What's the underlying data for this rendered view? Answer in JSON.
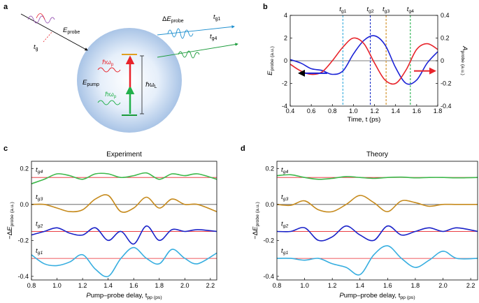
{
  "panel_labels": {
    "a": "a",
    "b": "b",
    "c": "c",
    "d": "d"
  },
  "diagram_a": {
    "e_probe": "E_probe",
    "e_pump": "E_pump",
    "delta_e_probe": "ΔE_probe",
    "tg": "t_g",
    "tg1": "t_g1",
    "tg4": "t_g4",
    "hbar_omega_p": "ℏω_p",
    "hbar_omega_L": "ℏω_L"
  },
  "chart_data": [
    {
      "id": "b",
      "type": "line",
      "title": "",
      "xlabel": "Time, t (ps)",
      "ylabel_left": "E_probe (a.u.)",
      "ylabel_right": "A_probe (a.u.)",
      "xlim": [
        0.4,
        1.8
      ],
      "ylim_left": [
        -4,
        4
      ],
      "ylim_right": [
        -0.4,
        0.4
      ],
      "xticks": [
        "0.4",
        "0.6",
        "0.8",
        "1.0",
        "1.2",
        "1.4",
        "1.6",
        "1.8"
      ],
      "yticks_left": [
        "4",
        "2",
        "0",
        "-2",
        "-4"
      ],
      "yticks_right": [
        "0.4",
        "0.2",
        "0",
        "-0.2",
        "-0.4"
      ],
      "vlines": [
        {
          "label": "t_g1",
          "x": 0.9,
          "color": "#33aadd"
        },
        {
          "label": "t_g2",
          "x": 1.16,
          "color": "#1a2fc7"
        },
        {
          "label": "t_g3",
          "x": 1.31,
          "color": "#d08a1c"
        },
        {
          "label": "t_g4",
          "x": 1.54,
          "color": "#22b04b"
        }
      ],
      "series": [
        {
          "name": "E_probe",
          "axis": "left",
          "color": "#1a22d6",
          "x": [
            0.4,
            0.5,
            0.6,
            0.7,
            0.8,
            0.9,
            1.0,
            1.1,
            1.2,
            1.3,
            1.4,
            1.5,
            1.6,
            1.7,
            1.8
          ],
          "y": [
            0.1,
            -0.2,
            -0.7,
            -0.85,
            -1.2,
            -0.9,
            0.6,
            1.8,
            2.2,
            1.4,
            -0.6,
            -2.0,
            -1.7,
            -0.2,
            0.8
          ]
        },
        {
          "name": "A_probe",
          "axis": "right",
          "color": "#e8232a",
          "x": [
            0.4,
            0.5,
            0.6,
            0.7,
            0.8,
            0.9,
            1.0,
            1.1,
            1.2,
            1.3,
            1.4,
            1.5,
            1.6,
            1.7,
            1.8
          ],
          "y": [
            -0.03,
            -0.09,
            -0.12,
            -0.1,
            0.0,
            0.12,
            0.2,
            0.15,
            -0.02,
            -0.17,
            -0.2,
            -0.08,
            0.1,
            0.15,
            0.1
          ]
        }
      ]
    },
    {
      "id": "c",
      "type": "line",
      "title": "Experiment",
      "xlabel": "Pump–probe delay, t_pp (ps)",
      "ylabel": "−ΔE_probe (a.u.)",
      "xlim": [
        0.8,
        2.25
      ],
      "ylim": [
        -0.42,
        0.24
      ],
      "xticks": [
        "0.8",
        "1.0",
        "1.2",
        "1.4",
        "1.6",
        "1.8",
        "2.0",
        "2.2"
      ],
      "yticks": [
        "0.2",
        "0.0",
        "-0.2",
        "-0.4"
      ],
      "baselines": [
        0.15,
        0.0,
        -0.15,
        -0.3
      ],
      "series": [
        {
          "name": "t_g4",
          "color": "#3cb84a",
          "x": [
            0.8,
            0.9,
            1.0,
            1.1,
            1.2,
            1.3,
            1.4,
            1.5,
            1.6,
            1.7,
            1.8,
            1.9,
            2.0,
            2.1,
            2.25
          ],
          "y": [
            0.115,
            0.14,
            0.17,
            0.16,
            0.14,
            0.17,
            0.17,
            0.15,
            0.16,
            0.175,
            0.14,
            0.17,
            0.16,
            0.17,
            0.14
          ]
        },
        {
          "name": "t_g3",
          "color": "#c68a1c",
          "x": [
            0.8,
            0.9,
            1.0,
            1.1,
            1.2,
            1.3,
            1.4,
            1.5,
            1.6,
            1.7,
            1.8,
            1.9,
            2.0,
            2.1,
            2.25
          ],
          "y": [
            0.0,
            0.0,
            -0.02,
            -0.04,
            -0.03,
            0.03,
            0.05,
            -0.04,
            -0.02,
            0.04,
            -0.02,
            0.03,
            0.0,
            0.0,
            -0.04
          ]
        },
        {
          "name": "t_g2",
          "color": "#1a22c8",
          "x": [
            0.8,
            0.9,
            1.0,
            1.1,
            1.2,
            1.3,
            1.4,
            1.5,
            1.6,
            1.7,
            1.8,
            1.9,
            2.0,
            2.1,
            2.25
          ],
          "y": [
            -0.17,
            -0.15,
            -0.13,
            -0.16,
            -0.17,
            -0.13,
            -0.2,
            -0.15,
            -0.22,
            -0.12,
            -0.2,
            -0.14,
            -0.15,
            -0.14,
            -0.15
          ]
        },
        {
          "name": "t_g1",
          "color": "#36aee0",
          "x": [
            0.8,
            0.9,
            1.0,
            1.1,
            1.2,
            1.3,
            1.4,
            1.5,
            1.6,
            1.7,
            1.8,
            1.9,
            2.0,
            2.1,
            2.25
          ],
          "y": [
            -0.28,
            -0.33,
            -0.34,
            -0.32,
            -0.28,
            -0.36,
            -0.4,
            -0.3,
            -0.24,
            -0.3,
            -0.33,
            -0.25,
            -0.3,
            -0.33,
            -0.27
          ]
        }
      ],
      "series_labels": [
        "t_g4",
        "t_g3",
        "t_g2",
        "t_g1"
      ]
    },
    {
      "id": "d",
      "type": "line",
      "title": "Theory",
      "xlabel": "Pump–probe delay, t_pp (ps)",
      "ylabel": "−ΔE_probe (a.u.)",
      "xlim": [
        0.8,
        2.25
      ],
      "ylim": [
        -0.42,
        0.24
      ],
      "xticks": [
        "0.8",
        "1.0",
        "1.2",
        "1.4",
        "1.6",
        "1.8",
        "2.0",
        "2.2"
      ],
      "yticks": [
        "0.2",
        "0.0",
        "-0.2",
        "-0.4"
      ],
      "baselines": [
        0.15,
        0.0,
        -0.15,
        -0.3
      ],
      "series": [
        {
          "name": "t_g4",
          "color": "#3cb84a",
          "x": [
            0.8,
            0.9,
            1.0,
            1.1,
            1.2,
            1.3,
            1.4,
            1.5,
            1.6,
            1.7,
            1.8,
            1.9,
            2.0,
            2.1,
            2.25
          ],
          "y": [
            0.16,
            0.165,
            0.15,
            0.14,
            0.145,
            0.155,
            0.15,
            0.145,
            0.15,
            0.152,
            0.148,
            0.15,
            0.15,
            0.148,
            0.15
          ]
        },
        {
          "name": "t_g3",
          "color": "#c68a1c",
          "x": [
            0.8,
            0.9,
            1.0,
            1.1,
            1.2,
            1.3,
            1.4,
            1.5,
            1.6,
            1.7,
            1.8,
            1.9,
            2.0,
            2.1,
            2.25
          ],
          "y": [
            0.0,
            -0.005,
            0.02,
            -0.03,
            -0.04,
            0.0,
            0.05,
            0.01,
            -0.04,
            0.02,
            0.01,
            -0.01,
            0.0,
            0.0,
            0.0
          ]
        },
        {
          "name": "t_g2",
          "color": "#1a22c8",
          "x": [
            0.8,
            0.9,
            1.0,
            1.1,
            1.2,
            1.3,
            1.4,
            1.5,
            1.6,
            1.7,
            1.8,
            1.9,
            2.0,
            2.1,
            2.25
          ],
          "y": [
            -0.15,
            -0.15,
            -0.13,
            -0.2,
            -0.18,
            -0.12,
            -0.17,
            -0.2,
            -0.12,
            -0.17,
            -0.15,
            -0.13,
            -0.15,
            -0.13,
            -0.15
          ]
        },
        {
          "name": "t_g1",
          "color": "#36aee0",
          "x": [
            0.8,
            0.9,
            1.0,
            1.1,
            1.2,
            1.3,
            1.4,
            1.5,
            1.6,
            1.7,
            1.8,
            1.9,
            2.0,
            2.1,
            2.25
          ],
          "y": [
            -0.3,
            -0.3,
            -0.31,
            -0.3,
            -0.33,
            -0.35,
            -0.39,
            -0.28,
            -0.23,
            -0.3,
            -0.35,
            -0.31,
            -0.26,
            -0.3,
            -0.3
          ]
        }
      ],
      "series_labels": [
        "t_g4",
        "t_g3",
        "t_g2",
        "t_g1"
      ]
    }
  ]
}
